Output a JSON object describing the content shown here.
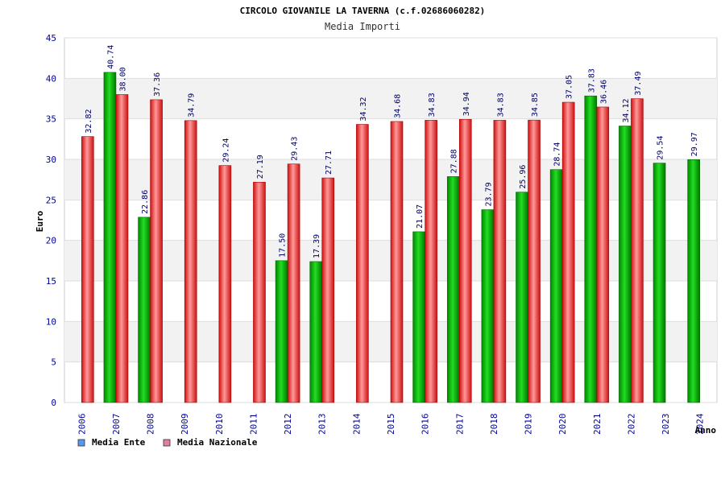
{
  "chart_data": {
    "type": "bar",
    "title": "CIRCOLO GIOVANILE LA TAVERNA (c.f.02686060282)",
    "subtitle": "Media Importi",
    "xlabel": "Anno",
    "ylabel": "Euro",
    "ylim": [
      0,
      45
    ],
    "yticks": [
      "0",
      "5",
      "10",
      "15",
      "20",
      "25",
      "30",
      "35",
      "40",
      "45"
    ],
    "grid": true,
    "legend_position": "bottom-left",
    "categories": [
      "2006",
      "2007",
      "2008",
      "2009",
      "2010",
      "2011",
      "2012",
      "2013",
      "2014",
      "2015",
      "2016",
      "2017",
      "2018",
      "2019",
      "2020",
      "2021",
      "2022",
      "2023",
      "2024"
    ],
    "series": [
      {
        "name": "Media Ente",
        "color": "#00aa00",
        "legend_color": "#5599ee",
        "values": [
          null,
          40.74,
          22.86,
          null,
          null,
          null,
          17.5,
          17.39,
          null,
          null,
          21.07,
          27.88,
          23.79,
          25.96,
          28.74,
          37.83,
          34.12,
          29.54,
          29.97
        ],
        "labels": [
          null,
          "40.74",
          "22.86",
          null,
          null,
          null,
          "17.50",
          "17.39",
          null,
          null,
          "21.07",
          "27.88",
          "23.79",
          "25.96",
          "28.74",
          "37.83",
          "34.12",
          "29.54",
          "29.97"
        ]
      },
      {
        "name": "Media Nazionale",
        "color": "#e02020",
        "legend_color": "#e07fa0",
        "values": [
          32.82,
          38.0,
          37.36,
          34.79,
          29.24,
          27.19,
          29.43,
          27.71,
          34.32,
          34.68,
          34.83,
          34.94,
          34.83,
          34.85,
          37.05,
          36.46,
          37.49,
          null,
          null
        ],
        "labels": [
          "32.82",
          "38.00",
          "37.36",
          "34.79",
          "29.24",
          "27.19",
          "29.43",
          "27.71",
          "34.32",
          "34.68",
          "34.83",
          "34.94",
          "34.83",
          "34.85",
          "37.05",
          "36.46",
          "37.49",
          null,
          null
        ]
      }
    ]
  }
}
